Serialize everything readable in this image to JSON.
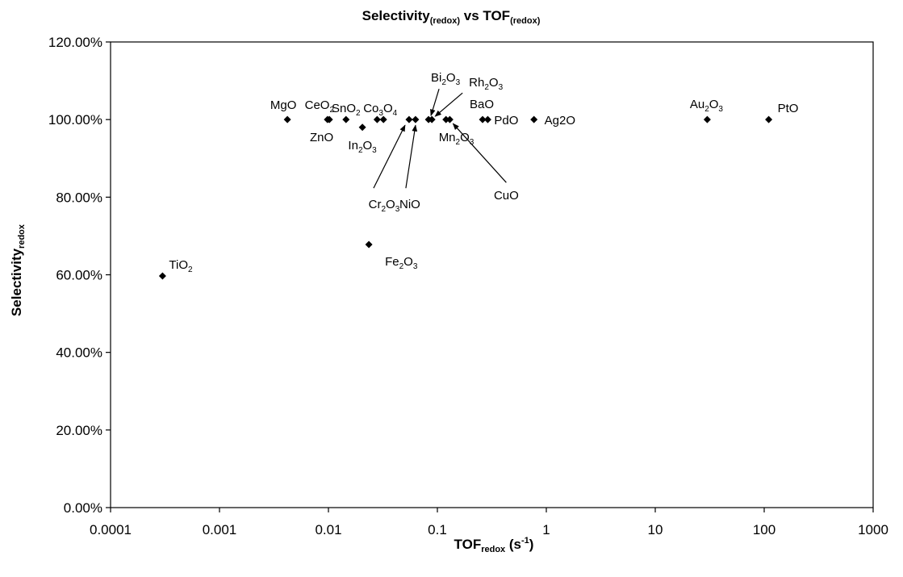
{
  "chart_data": {
    "type": "scatter",
    "title": {
      "main": "Selectivity",
      "sub": "(redox)",
      "mid": " vs TOF",
      "sub2": "(redox)"
    },
    "xlabel": {
      "main": "TOF",
      "sub": "redox",
      "unit_pre": " (s",
      "unit_sup": "-1",
      "unit_post": ")"
    },
    "ylabel": {
      "main": "Selectivity",
      "sub": "redox"
    },
    "xscale": "log",
    "xlim": [
      0.0001,
      1000
    ],
    "ylim": [
      0,
      1.2
    ],
    "x_ticks": [
      "0.0001",
      "0.001",
      "0.01",
      "0.1",
      "1",
      "10",
      "100",
      "1000"
    ],
    "y_ticks": [
      "0.00%",
      "20.00%",
      "40.00%",
      "60.00%",
      "80.00%",
      "100.00%",
      "120.00%"
    ],
    "grid": false,
    "legend": "none",
    "marker": "diamond",
    "marker_color": "#000000",
    "points": [
      {
        "name": "TiO2",
        "label": [
          {
            "t": "TiO"
          },
          {
            "t": "2",
            "sub": true
          }
        ],
        "x": 0.0003,
        "y": 0.597
      },
      {
        "name": "MgO",
        "label": [
          {
            "t": "MgO"
          }
        ],
        "x": 0.0042,
        "y": 1.0
      },
      {
        "name": "CeO2",
        "label": [
          {
            "t": "CeO"
          },
          {
            "t": "2",
            "sub": true
          }
        ],
        "x": 0.0098,
        "y": 1.0
      },
      {
        "name": "ZnO",
        "label": [
          {
            "t": "ZnO"
          }
        ],
        "x": 0.0102,
        "y": 1.0
      },
      {
        "name": "SnO2",
        "label": [
          {
            "t": "SnO"
          },
          {
            "t": "2",
            "sub": true
          }
        ],
        "x": 0.0145,
        "y": 1.0
      },
      {
        "name": "In2O3",
        "label": [
          {
            "t": "In"
          },
          {
            "t": "2",
            "sub": true
          },
          {
            "t": "O"
          },
          {
            "t": "3",
            "sub": true
          }
        ],
        "x": 0.0205,
        "y": 0.98
      },
      {
        "name": "Fe2O3",
        "label": [
          {
            "t": "Fe"
          },
          {
            "t": "2",
            "sub": true
          },
          {
            "t": "O"
          },
          {
            "t": "3",
            "sub": true
          }
        ],
        "x": 0.0235,
        "y": 0.678
      },
      {
        "name": "SnO2-b",
        "label": [],
        "x": 0.028,
        "y": 1.0
      },
      {
        "name": "Co3O4",
        "label": [
          {
            "t": "Co"
          },
          {
            "t": "3",
            "sub": true
          },
          {
            "t": "O"
          },
          {
            "t": "4",
            "sub": true
          }
        ],
        "x": 0.032,
        "y": 1.0
      },
      {
        "name": "Cr2O3",
        "label": [
          {
            "t": "Cr"
          },
          {
            "t": "2",
            "sub": true
          },
          {
            "t": "O"
          },
          {
            "t": "3",
            "sub": true
          }
        ],
        "x": 0.055,
        "y": 1.0
      },
      {
        "name": "NiO",
        "label": [
          {
            "t": "NiO"
          }
        ],
        "x": 0.063,
        "y": 1.0
      },
      {
        "name": "Bi2O3",
        "label": [
          {
            "t": "Bi"
          },
          {
            "t": "2",
            "sub": true
          },
          {
            "t": "O"
          },
          {
            "t": "3",
            "sub": true
          }
        ],
        "x": 0.083,
        "y": 1.0
      },
      {
        "name": "Rh2O3",
        "label": [
          {
            "t": "Rh"
          },
          {
            "t": "2",
            "sub": true
          },
          {
            "t": "O"
          },
          {
            "t": "3",
            "sub": true
          }
        ],
        "x": 0.089,
        "y": 1.0
      },
      {
        "name": "Mn2O3",
        "label": [
          {
            "t": "Mn"
          },
          {
            "t": "2",
            "sub": true
          },
          {
            "t": "O"
          },
          {
            "t": "3",
            "sub": true
          }
        ],
        "x": 0.12,
        "y": 1.0
      },
      {
        "name": "CuO",
        "label": [
          {
            "t": "CuO"
          }
        ],
        "x": 0.13,
        "y": 1.0
      },
      {
        "name": "BaO",
        "label": [
          {
            "t": "BaO"
          }
        ],
        "x": 0.26,
        "y": 1.0
      },
      {
        "name": "PdO",
        "label": [
          {
            "t": "PdO"
          }
        ],
        "x": 0.29,
        "y": 1.0
      },
      {
        "name": "Ag2O",
        "label": [
          {
            "t": "Ag2O"
          }
        ],
        "x": 0.77,
        "y": 1.0
      },
      {
        "name": "Au2O3",
        "label": [
          {
            "t": "Au"
          },
          {
            "t": "2",
            "sub": true
          },
          {
            "t": "O"
          },
          {
            "t": "3",
            "sub": true
          }
        ],
        "x": 30,
        "y": 1.0
      },
      {
        "name": "PtO",
        "label": [
          {
            "t": "PtO"
          }
        ],
        "x": 110,
        "y": 1.0
      }
    ]
  }
}
